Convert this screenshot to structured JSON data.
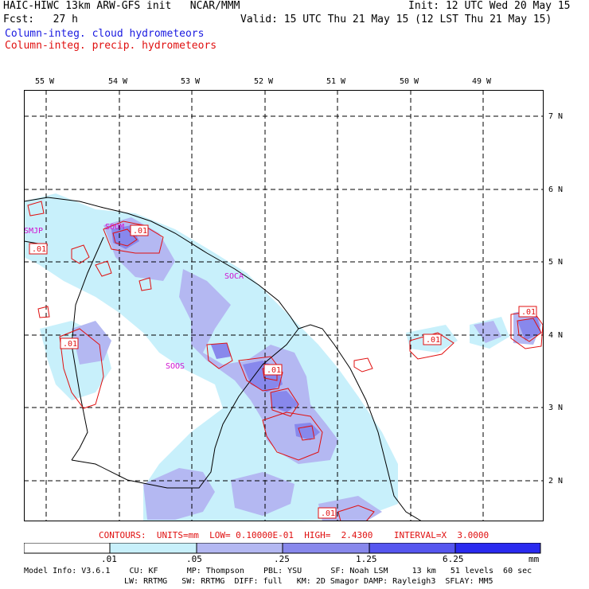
{
  "header": {
    "line1_left": "HAIC-HIWC 13km ARW-GFS init   NCAR/MMM",
    "line1_right": "Init: 12 UTC Wed 20 May 15",
    "line2_left": "Fcst:   27 h",
    "line2_right": "Valid: 15 UTC Thu 21 May 15 (12 LST Thu 21 May 15)",
    "legend_cloud": "Column-integ. cloud hydrometeors",
    "legend_precip": "Column-integ. precip. hydrometeors"
  },
  "map": {
    "lon_labels": [
      "55 W",
      "54 W",
      "53 W",
      "52 W",
      "51 W",
      "50 W",
      "49 W"
    ],
    "lat_labels": [
      "7 N",
      "6 N",
      "5 N",
      "4 N",
      "3 N",
      "2 N"
    ],
    "station_labels": [
      "SMJP",
      "SOOM",
      "SOCA",
      "SOOS"
    ],
    "contour_labels": [
      ".01",
      ".01",
      ".01",
      ".01",
      ".01",
      ".01",
      ".01"
    ]
  },
  "contour_info": "CONTOURS:  UNITS=mm  LOW= 0.10000E-01  HIGH=  2.4300    INTERVAL=X  3.0000",
  "colorbar": {
    "ticks": [
      ".01",
      ".05",
      ".25",
      "1.25",
      "6.25"
    ],
    "unit": "mm",
    "colors": [
      "#ffffff",
      "#c8f0fb",
      "#b4b8f2",
      "#8888ec",
      "#5656ef",
      "#2a2aef"
    ]
  },
  "model_info": {
    "line1": "Model Info: V3.6.1    CU: KF      MP: Thompson    PBL: YSU      SF: Noah LSM     13 km   51 levels  60 sec",
    "line2": "LW: RRTMG   SW: RRTMG  DIFF: full   KM: 2D Smagor DAMP: Rayleigh3  SFLAY: MM5"
  }
}
